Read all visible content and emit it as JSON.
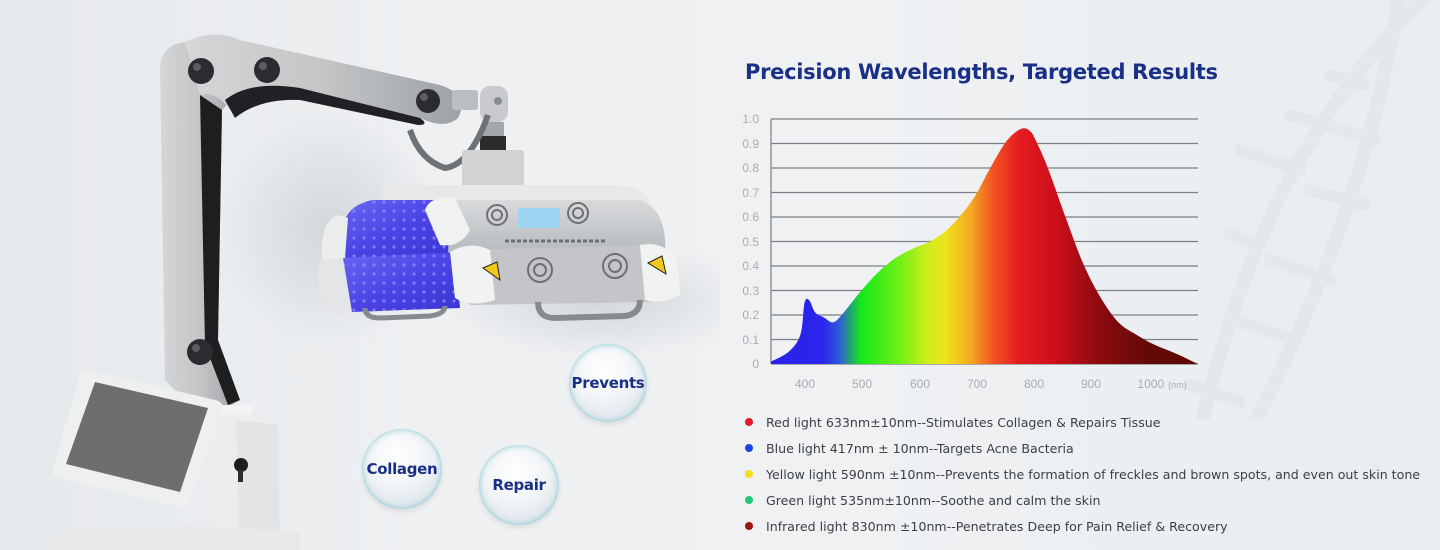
{
  "title": "Precision Wavelengths, Targeted Results",
  "bubbles": [
    {
      "label": "Prevents"
    },
    {
      "label": "Collagen"
    },
    {
      "label": "Repair"
    }
  ],
  "chart_data": {
    "type": "area",
    "title": "Precision Wavelengths, Targeted Results",
    "xlabel": "(nm)",
    "ylabel": "",
    "x_ticks": [
      "400",
      "500",
      "600",
      "700",
      "800",
      "900",
      "1000"
    ],
    "y_ticks": [
      "1.0",
      "0.9",
      "0.8",
      "0.7",
      "0.6",
      "0.5",
      "0.4",
      "0.3",
      "0.2",
      "0.1",
      "0"
    ],
    "xlim": [
      350,
      1075
    ],
    "ylim": [
      0,
      1.0
    ],
    "grid": "horizontal",
    "legend_position": "below",
    "fill": "spectral gradient (blue → green → yellow → red → dark red)",
    "x": [
      350,
      380,
      400,
      407,
      415,
      425,
      440,
      455,
      470,
      500,
      530,
      560,
      590,
      620,
      650,
      680,
      700,
      720,
      750,
      775,
      790,
      800,
      820,
      850,
      880,
      910,
      940,
      970,
      1000,
      1040,
      1075
    ],
    "values": [
      0.01,
      0.05,
      0.12,
      0.25,
      0.26,
      0.21,
      0.19,
      0.17,
      0.2,
      0.29,
      0.37,
      0.43,
      0.47,
      0.5,
      0.55,
      0.63,
      0.7,
      0.79,
      0.91,
      0.96,
      0.95,
      0.91,
      0.8,
      0.6,
      0.41,
      0.27,
      0.17,
      0.12,
      0.08,
      0.04,
      0.0
    ],
    "peaks": [
      {
        "x": 410,
        "y": 0.26,
        "label": "blue peak"
      },
      {
        "x": 785,
        "y": 0.96,
        "label": "red / infrared peak"
      }
    ]
  },
  "legend": [
    {
      "color": "#e5192b",
      "label": "Red light 633nm±10nm--Stimulates Collagen & Repairs Tissue"
    },
    {
      "color": "#1847e0",
      "label": "Blue light 417nm ± 10nm--Targets Acne Bacteria"
    },
    {
      "color": "#f6df1c",
      "label": "Yellow light 590nm ±10nm--Prevents the formation of freckles and brown spots, and even out skin tone"
    },
    {
      "color": "#22c97a",
      "label": "Green light 535nm±10nm--Soothe and calm the skin"
    },
    {
      "color": "#9b1410",
      "label": "Infrared light 830nm ±10nm--Penetrates Deep for Pain Relief & Recovery"
    }
  ],
  "colors": {
    "title": "#1a2f86",
    "gridline": "#7c7f83",
    "tick_label": "#a9adb2"
  }
}
